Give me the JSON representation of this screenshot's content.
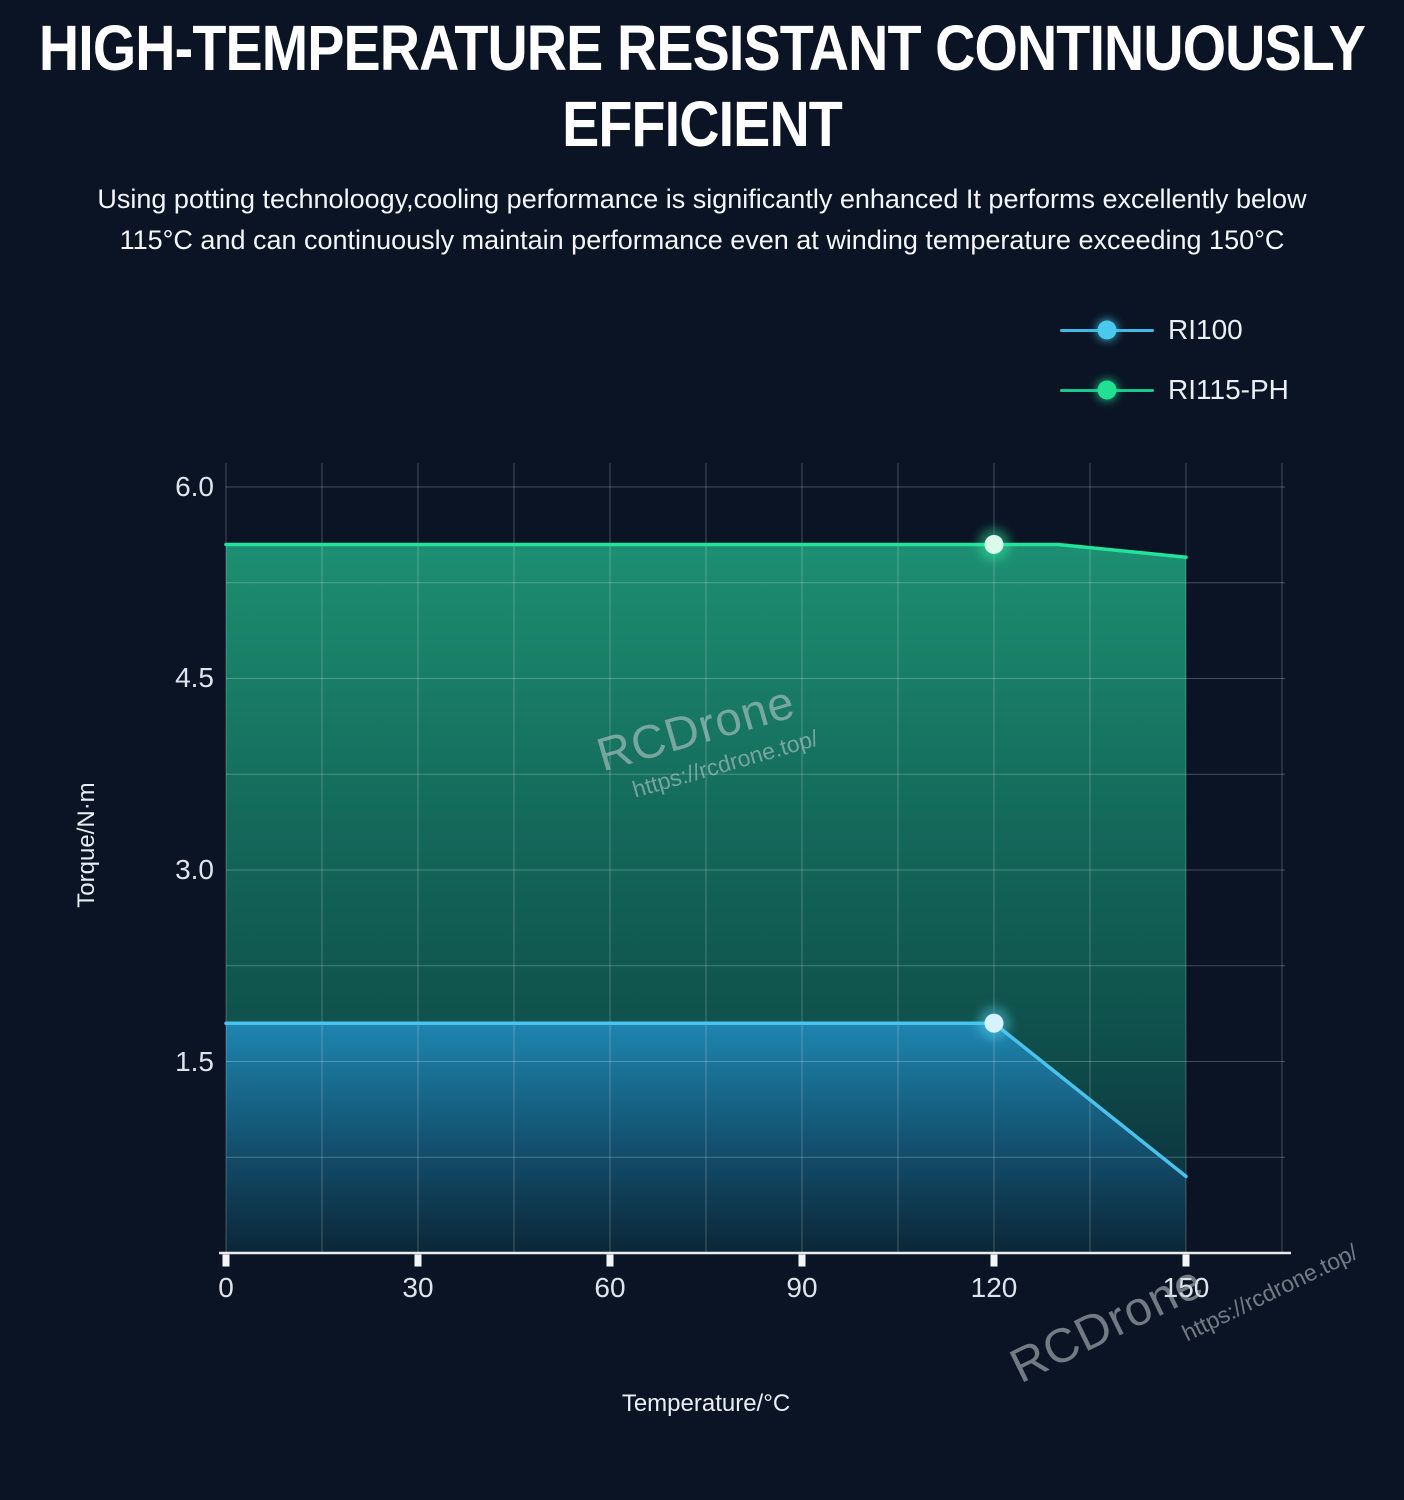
{
  "header": {
    "title_line1": "HIGH-TEMPERATURE RESISTANT CONTINUOUSLY",
    "title_line2": "EFFICIENT",
    "subtitle_line1": "Using potting technoloogy,cooling performance is significantly enhanced It performs excellently below",
    "subtitle_line2": "115°C and can continuously maintain performance even at winding temperature exceeding 150°C"
  },
  "legend": {
    "items": [
      {
        "label": "RI100",
        "line_color": "#3fb9e6",
        "dot_color": "#49c9ee"
      },
      {
        "label": "RI115-PH",
        "line_color": "#16c98e",
        "dot_color": "#22e093"
      }
    ]
  },
  "watermarks": {
    "middle": {
      "name": "RCDrone",
      "url": "https://rcdrone.top/"
    },
    "bottom_right": {
      "name": "RCDrone",
      "url": "https://rcdrone.top/"
    }
  },
  "colors": {
    "background": "#0a1424",
    "grid": "rgba(255,255,255,0.24)",
    "axis": "rgba(244,247,250,0.95)",
    "tick_text": "#dde4ec",
    "title_text": "#ffffff"
  },
  "chart_data": {
    "type": "area",
    "title": "",
    "xlabel": "Temperature/°C",
    "ylabel": "Torque/N·m",
    "xlim": [
      0,
      165
    ],
    "ylim": [
      0,
      6.2
    ],
    "x_ticks": [
      0,
      30,
      60,
      90,
      120,
      150
    ],
    "x_tick_labels": [
      "0",
      "30",
      "60",
      "90",
      "120",
      "150"
    ],
    "y_ticks": [
      1.5,
      3,
      4.5,
      6
    ],
    "y_tick_labels": [
      "1.5",
      "3.0",
      "4.5",
      "6.0"
    ],
    "x_minor_step": 15,
    "y_minor_step": 0.75,
    "grid": true,
    "legend_position": "top-right",
    "series": [
      {
        "name": "RI115-PH",
        "line_color": "#21e39b",
        "points": [
          [
            0,
            5.55
          ],
          [
            120,
            5.55
          ],
          [
            130,
            5.55
          ],
          [
            150,
            5.45
          ]
        ],
        "marker": [
          120,
          5.55
        ],
        "marker_fill": "#d9fbea",
        "glow": "#2df0a5",
        "area_gradient": [
          {
            "offset": 0,
            "color": "#1d8f72",
            "opacity": 1
          },
          {
            "offset": 0.38,
            "color": "#146a5b",
            "opacity": 1
          },
          {
            "offset": 0.7,
            "color": "#0f4f4b",
            "opacity": 1
          },
          {
            "offset": 1,
            "color": "#0b2737",
            "opacity": 1
          }
        ]
      },
      {
        "name": "RI100",
        "line_color": "#4ac2ec",
        "points": [
          [
            0,
            1.8
          ],
          [
            120,
            1.8
          ],
          [
            150,
            0.6
          ]
        ],
        "marker": [
          120,
          1.8
        ],
        "marker_fill": "#d5f2fd",
        "glow": "#59d4f6",
        "area_gradient": [
          {
            "offset": 0,
            "color": "#1e86b0",
            "opacity": 1
          },
          {
            "offset": 0.55,
            "color": "#134f6e",
            "opacity": 0.97
          },
          {
            "offset": 1,
            "color": "#0b2737",
            "opacity": 0.9
          }
        ]
      }
    ]
  }
}
